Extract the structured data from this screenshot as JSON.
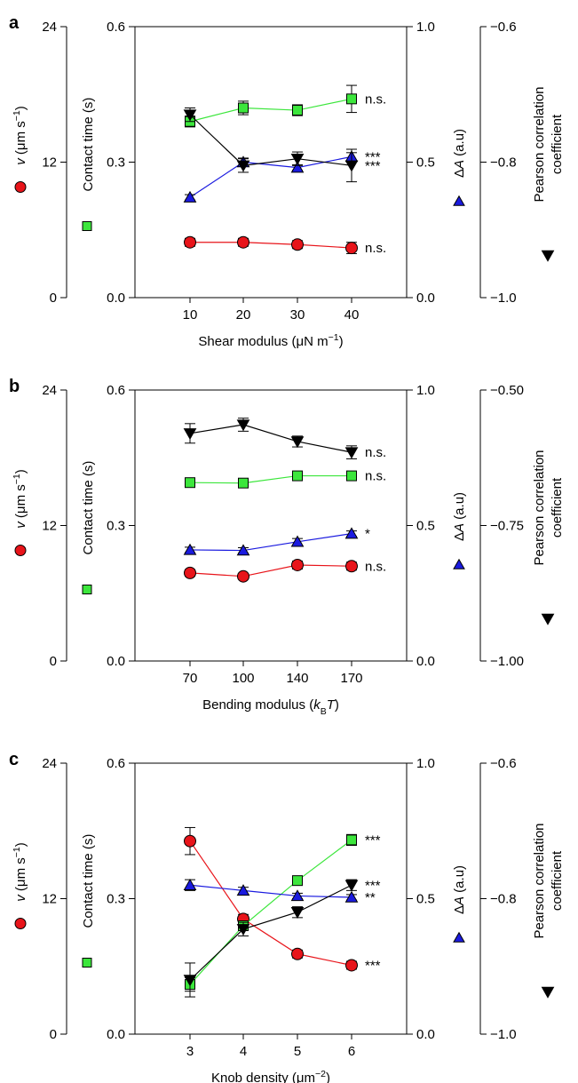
{
  "colors": {
    "red": "#e8141a",
    "green": "#3ce63c",
    "blue": "#1a1adf",
    "black": "#000000"
  },
  "chart_data": [
    {
      "type": "line",
      "panel_label": "a",
      "xlabel_parts": [
        {
          "t": "Shear modulus (μN m"
        },
        {
          "t": "−1",
          "sup": true
        },
        {
          "t": ")"
        }
      ],
      "x": [
        10,
        20,
        30,
        40
      ],
      "xticks": [
        "10",
        "20",
        "30",
        "40"
      ],
      "axes": {
        "v": {
          "label_parts": [
            {
              "t": "v",
              "it": true
            },
            {
              "t": " (μm s"
            },
            {
              "t": "−1",
              "sup": true
            },
            {
              "t": ")"
            }
          ],
          "ticks": [
            "0",
            "12",
            "24"
          ],
          "ylim": [
            0,
            24
          ]
        },
        "ct": {
          "label_parts": [
            {
              "t": "Contact time (s)"
            }
          ],
          "ticks": [
            "0.0",
            "0.3",
            "0.6"
          ],
          "ylim": [
            0,
            0.6
          ]
        },
        "da": {
          "label_parts": [
            {
              "t": "Δ"
            },
            {
              "t": "A",
              "it": true
            },
            {
              "t": " (a.u)"
            }
          ],
          "ticks": [
            "0.0",
            "0.5",
            "1.0"
          ],
          "ylim": [
            0,
            1.0
          ]
        },
        "pc": {
          "label_lines": [
            "Pearson correlation",
            "coefficient"
          ],
          "ticks": [
            "−1.0",
            "−0.8",
            "−0.6"
          ],
          "ylim": [
            -1.0,
            -0.6
          ]
        }
      },
      "series": [
        {
          "key": "v",
          "marker": "circle",
          "color": "red",
          "values": [
            4.9,
            4.9,
            4.7,
            4.4
          ],
          "err": [
            0.35,
            0.35,
            0.35,
            0.5
          ],
          "sig": "n.s."
        },
        {
          "key": "ct",
          "marker": "square",
          "color": "green",
          "values": [
            0.39,
            0.42,
            0.415,
            0.44
          ],
          "err": [
            0.012,
            0.015,
            0.012,
            0.03
          ],
          "sig": "n.s."
        },
        {
          "key": "da",
          "marker": "triangle-up",
          "color": "blue",
          "values": [
            0.37,
            0.5,
            0.48,
            0.52
          ],
          "err": [
            0.01,
            0.015,
            0.01,
            0.015
          ],
          "sig": "***"
        },
        {
          "key": "pc",
          "marker": "triangle-down",
          "color": "black",
          "values": [
            -0.73,
            -0.805,
            -0.795,
            -0.805
          ],
          "err": [
            0.01,
            0.01,
            0.01,
            0.024
          ],
          "sig": "***"
        }
      ]
    },
    {
      "type": "line",
      "panel_label": "b",
      "xlabel_parts": [
        {
          "t": "Bending modulus ("
        },
        {
          "t": "k",
          "it": true
        },
        {
          "t": "B",
          "sub": true
        },
        {
          "t": "T",
          "it": true
        },
        {
          "t": ")"
        }
      ],
      "x": [
        70,
        100,
        140,
        170
      ],
      "xticks": [
        "70",
        "100",
        "140",
        "170"
      ],
      "axes": {
        "v": {
          "label_parts": [
            {
              "t": "v",
              "it": true
            },
            {
              "t": " (μm s"
            },
            {
              "t": "−1",
              "sup": true
            },
            {
              "t": ")"
            }
          ],
          "ticks": [
            "0",
            "12",
            "24"
          ],
          "ylim": [
            0,
            24
          ]
        },
        "ct": {
          "label_parts": [
            {
              "t": "Contact time (s)"
            }
          ],
          "ticks": [
            "0.0",
            "0.3",
            "0.6"
          ],
          "ylim": [
            0,
            0.6
          ]
        },
        "da": {
          "label_parts": [
            {
              "t": "Δ"
            },
            {
              "t": "A",
              "it": true
            },
            {
              "t": " (a.u)"
            }
          ],
          "ticks": [
            "0.0",
            "0.5",
            "1.0"
          ],
          "ylim": [
            0,
            1.0
          ]
        },
        "pc": {
          "label_lines": [
            "Pearson correlation",
            "coefficient"
          ],
          "ticks": [
            "−1.00",
            "−0.75",
            "−0.50"
          ],
          "ylim": [
            -1.0,
            -0.5
          ]
        }
      },
      "series": [
        {
          "key": "v",
          "marker": "circle",
          "color": "red",
          "values": [
            7.8,
            7.5,
            8.5,
            8.4
          ],
          "err": [
            0.3,
            0.25,
            0.35,
            0.35
          ],
          "sig": "n.s."
        },
        {
          "key": "ct",
          "marker": "square",
          "color": "green",
          "values": [
            0.395,
            0.394,
            0.41,
            0.41
          ],
          "err": [
            0.008,
            0.008,
            0.01,
            0.01
          ],
          "sig": "n.s."
        },
        {
          "key": "da",
          "marker": "triangle-up",
          "color": "blue",
          "values": [
            0.41,
            0.408,
            0.44,
            0.47
          ],
          "err": [
            0.01,
            0.01,
            0.012,
            0.01
          ],
          "sig": "*"
        },
        {
          "key": "pc",
          "marker": "triangle-down",
          "color": "black",
          "values": [
            -0.58,
            -0.564,
            -0.595,
            -0.615
          ],
          "err": [
            0.018,
            0.012,
            0.01,
            0.012
          ],
          "sig": "n.s."
        }
      ]
    },
    {
      "type": "line",
      "panel_label": "c",
      "xlabel_parts": [
        {
          "t": "Knob density (μm"
        },
        {
          "t": "−2",
          "sup": true
        },
        {
          "t": ")"
        }
      ],
      "x": [
        3,
        4,
        5,
        6
      ],
      "xticks": [
        "3",
        "4",
        "5",
        "6"
      ],
      "axes": {
        "v": {
          "label_parts": [
            {
              "t": "v",
              "it": true
            },
            {
              "t": " (μm s"
            },
            {
              "t": "−1",
              "sup": true
            },
            {
              "t": ")"
            }
          ],
          "ticks": [
            "0",
            "12",
            "24"
          ],
          "ylim": [
            0,
            24
          ]
        },
        "ct": {
          "label_parts": [
            {
              "t": "Contact time (s)"
            }
          ],
          "ticks": [
            "0.0",
            "0.3",
            "0.6"
          ],
          "ylim": [
            0,
            0.6
          ]
        },
        "da": {
          "label_parts": [
            {
              "t": "Δ"
            },
            {
              "t": "A",
              "it": true
            },
            {
              "t": " (a.u)"
            }
          ],
          "ticks": [
            "0.0",
            "0.5",
            "1.0"
          ],
          "ylim": [
            0,
            1.0
          ]
        },
        "pc": {
          "label_lines": [
            "Pearson correlation",
            "coefficient"
          ],
          "ticks": [
            "−1.0",
            "−0.8",
            "−0.6"
          ],
          "ylim": [
            -1.0,
            -0.6
          ]
        }
      },
      "series": [
        {
          "key": "v",
          "marker": "circle",
          "color": "red",
          "values": [
            17.1,
            10.2,
            7.1,
            6.1
          ],
          "err": [
            1.2,
            0.4,
            0.35,
            0.35
          ],
          "sig": "***"
        },
        {
          "key": "ct",
          "marker": "square",
          "color": "green",
          "values": [
            0.11,
            0.24,
            0.34,
            0.43
          ],
          "err": [
            0.015,
            0.01,
            0.01,
            0.012
          ],
          "sig": "***"
        },
        {
          "key": "da",
          "marker": "triangle-up",
          "color": "blue",
          "values": [
            0.55,
            0.53,
            0.51,
            0.505
          ],
          "err": [
            0.02,
            0.012,
            0.01,
            0.01
          ],
          "sig": "**"
        },
        {
          "key": "pc",
          "marker": "triangle-down",
          "color": "black",
          "values": [
            -0.92,
            -0.845,
            -0.82,
            -0.78
          ],
          "err": [
            0.025,
            0.01,
            0.008,
            0.008
          ],
          "sig": "***"
        }
      ]
    }
  ]
}
